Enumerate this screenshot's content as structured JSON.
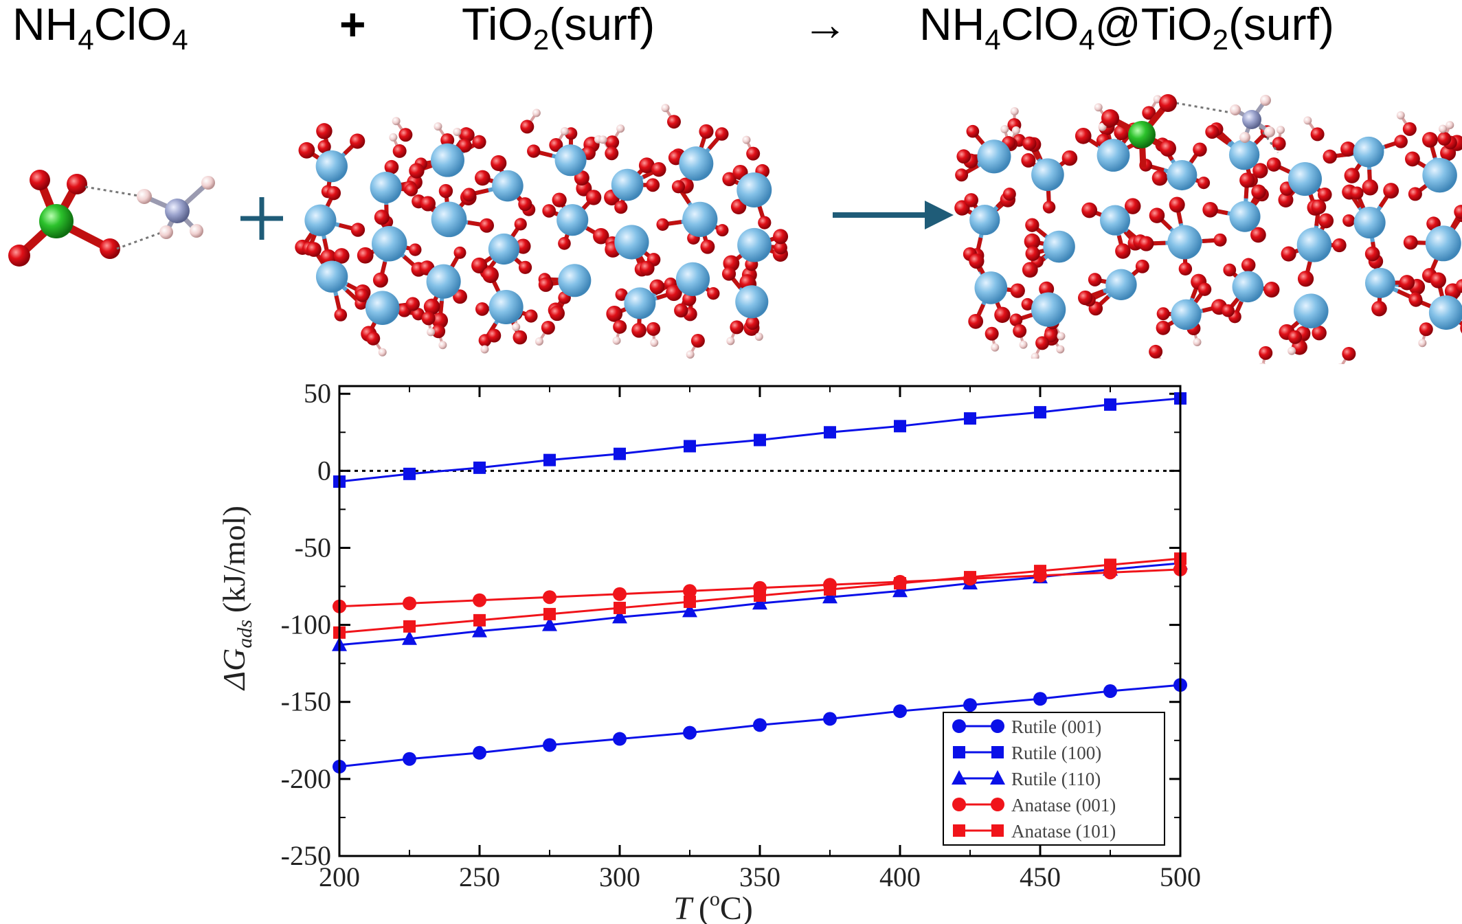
{
  "equation": {
    "reactant1": {
      "main": "NH",
      "sub1": "4",
      "mid": "ClO",
      "sub2": "4"
    },
    "plus": "+",
    "reactant2": {
      "main": "TiO",
      "sub": "2",
      "tail": "(surf)"
    },
    "arrow": "→",
    "product": {
      "a": "NH",
      "s1": "4",
      "b": "ClO",
      "s2": "4",
      "c": "@TiO",
      "s3": "2",
      "d": "(surf)"
    }
  },
  "colors": {
    "rutile": "#0a10e8",
    "anatase": "#f0141a",
    "reaction_arrow": "#1f5c78",
    "ti_atom": "#79b8e0",
    "o_atom": "#e0101a",
    "h_atom": "#f2d2d2",
    "cl_atom": "#22c022",
    "n_atom": "#9aa2cc"
  },
  "icons": [
    "perchlorate-molecule-icon",
    "ammonium-molecule-icon",
    "tio2-slab-icon",
    "adsorbed-complex-icon"
  ],
  "chart_data": {
    "type": "line",
    "ylabel_symbol": "ΔG",
    "ylabel_sub": "ads",
    "ylabel_unit": "(kJ/mol)",
    "xlabel_symbol": "T",
    "xlabel_unit_pre": "(",
    "xlabel_unit_sup": "o",
    "xlabel_unit_post": "C)",
    "xlim": [
      200,
      500
    ],
    "ylim": [
      -250,
      55
    ],
    "xticks": [
      200,
      250,
      300,
      350,
      400,
      450,
      500
    ],
    "xtick_labels": [
      "200",
      "250",
      "300",
      "350",
      "400",
      "450",
      "500"
    ],
    "yticks": [
      50,
      0,
      -50,
      -100,
      -150,
      -200,
      -250
    ],
    "ytick_labels": [
      "50",
      "0",
      "-50",
      "-100",
      "-150",
      "-200",
      "-250"
    ],
    "zero_reference_line": true,
    "legend_position": "bottom-right",
    "x": [
      200,
      225,
      250,
      275,
      300,
      325,
      350,
      375,
      400,
      425,
      450,
      475,
      500
    ],
    "series": [
      {
        "name": "Rutile (001)",
        "marker": "circle",
        "color": "#0a10e8",
        "values": [
          -192,
          -187,
          -183,
          -178,
          -174,
          -170,
          -165,
          -161,
          -156,
          -152,
          -148,
          -143,
          -139
        ]
      },
      {
        "name": "Rutile (100)",
        "marker": "square",
        "color": "#0a10e8",
        "values": [
          -7,
          -2,
          2,
          7,
          11,
          16,
          20,
          25,
          29,
          34,
          38,
          43,
          47
        ]
      },
      {
        "name": "Rutile (110)",
        "marker": "triangle",
        "color": "#0a10e8",
        "values": [
          -113,
          -109,
          -104,
          -100,
          -95,
          -91,
          -86,
          -82,
          -78,
          -73,
          -69,
          -64,
          -60
        ]
      },
      {
        "name": "Anatase (001)",
        "marker": "circle",
        "color": "#f0141a",
        "values": [
          -88,
          -86,
          -84,
          -82,
          -80,
          -78,
          -76,
          -74,
          -72,
          -70,
          -68,
          -66,
          -64
        ]
      },
      {
        "name": "Anatase (101)",
        "marker": "square",
        "color": "#f0141a",
        "values": [
          -105,
          -101,
          -97,
          -93,
          -89,
          -85,
          -81,
          -77,
          -73,
          -69,
          -65,
          -61,
          -57
        ]
      }
    ]
  }
}
